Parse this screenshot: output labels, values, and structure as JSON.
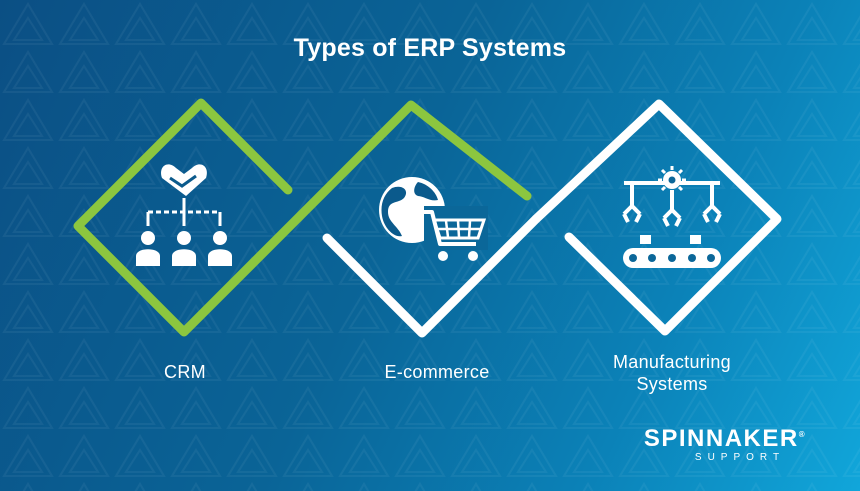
{
  "title": "Types of ERP Systems",
  "colors": {
    "green": "#8cc63f",
    "white": "#ffffff",
    "bg_dark": "#0b4f84",
    "bg_light": "#11a6da"
  },
  "items": [
    {
      "label": "CRM",
      "icon": "handshake-team-icon"
    },
    {
      "label": "E-commerce",
      "icon": "globe-cart-icon"
    },
    {
      "label": "Manufacturing\nSystems",
      "icon": "robot-arms-conveyor-icon"
    }
  ],
  "brand": {
    "name": "SPINNAKER",
    "tagline": "SUPPORT",
    "mark": "®"
  }
}
